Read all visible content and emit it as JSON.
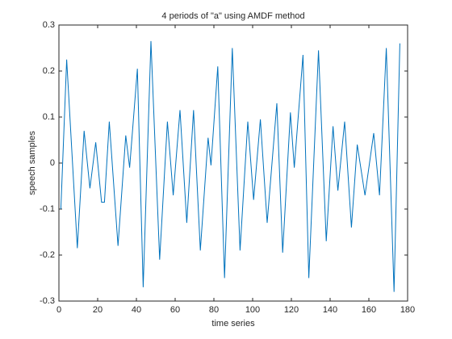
{
  "chart_data": {
    "type": "line",
    "title": "4 periods of \"a\" using AMDF method",
    "xlabel": "time series",
    "ylabel": "speech samples",
    "x": [
      1,
      4,
      9.5,
      13,
      16,
      19,
      22,
      23.5,
      26,
      30.5,
      34.5,
      36.5,
      40.5,
      43.5,
      47.5,
      52,
      56,
      59,
      62.5,
      66,
      69.5,
      73,
      77,
      78.5,
      82,
      85.5,
      89.5,
      93.5,
      97.5,
      100.5,
      104,
      107.5,
      112.5,
      115.5,
      119.5,
      121.5,
      126,
      129,
      134,
      138,
      141.5,
      144,
      147.5,
      151,
      154,
      158,
      162.5,
      165.5,
      169,
      173,
      176
    ],
    "series": [
      {
        "name": "speech",
        "color": "#0072bd",
        "values": [
          -0.1,
          0.225,
          -0.185,
          0.07,
          -0.055,
          0.045,
          -0.085,
          -0.085,
          0.09,
          -0.18,
          0.06,
          -0.01,
          0.205,
          -0.27,
          0.265,
          -0.21,
          0.09,
          -0.07,
          0.115,
          -0.13,
          0.115,
          -0.19,
          0.055,
          -0.005,
          0.21,
          -0.25,
          0.25,
          -0.19,
          0.09,
          -0.08,
          0.095,
          -0.13,
          0.13,
          -0.195,
          0.11,
          -0.01,
          0.235,
          -0.25,
          0.245,
          -0.17,
          0.08,
          -0.06,
          0.09,
          -0.14,
          0.04,
          -0.07,
          0.065,
          -0.07,
          0.25,
          -0.28,
          0.26
        ]
      }
    ],
    "xlim": [
      0,
      180
    ],
    "xticks": [
      0,
      20,
      40,
      60,
      80,
      100,
      120,
      140,
      160,
      180
    ],
    "ylim": [
      -0.3,
      0.3
    ],
    "yticks": [
      -0.3,
      -0.2,
      -0.1,
      0,
      0.1,
      0.2,
      0.3
    ],
    "grid": false
  }
}
